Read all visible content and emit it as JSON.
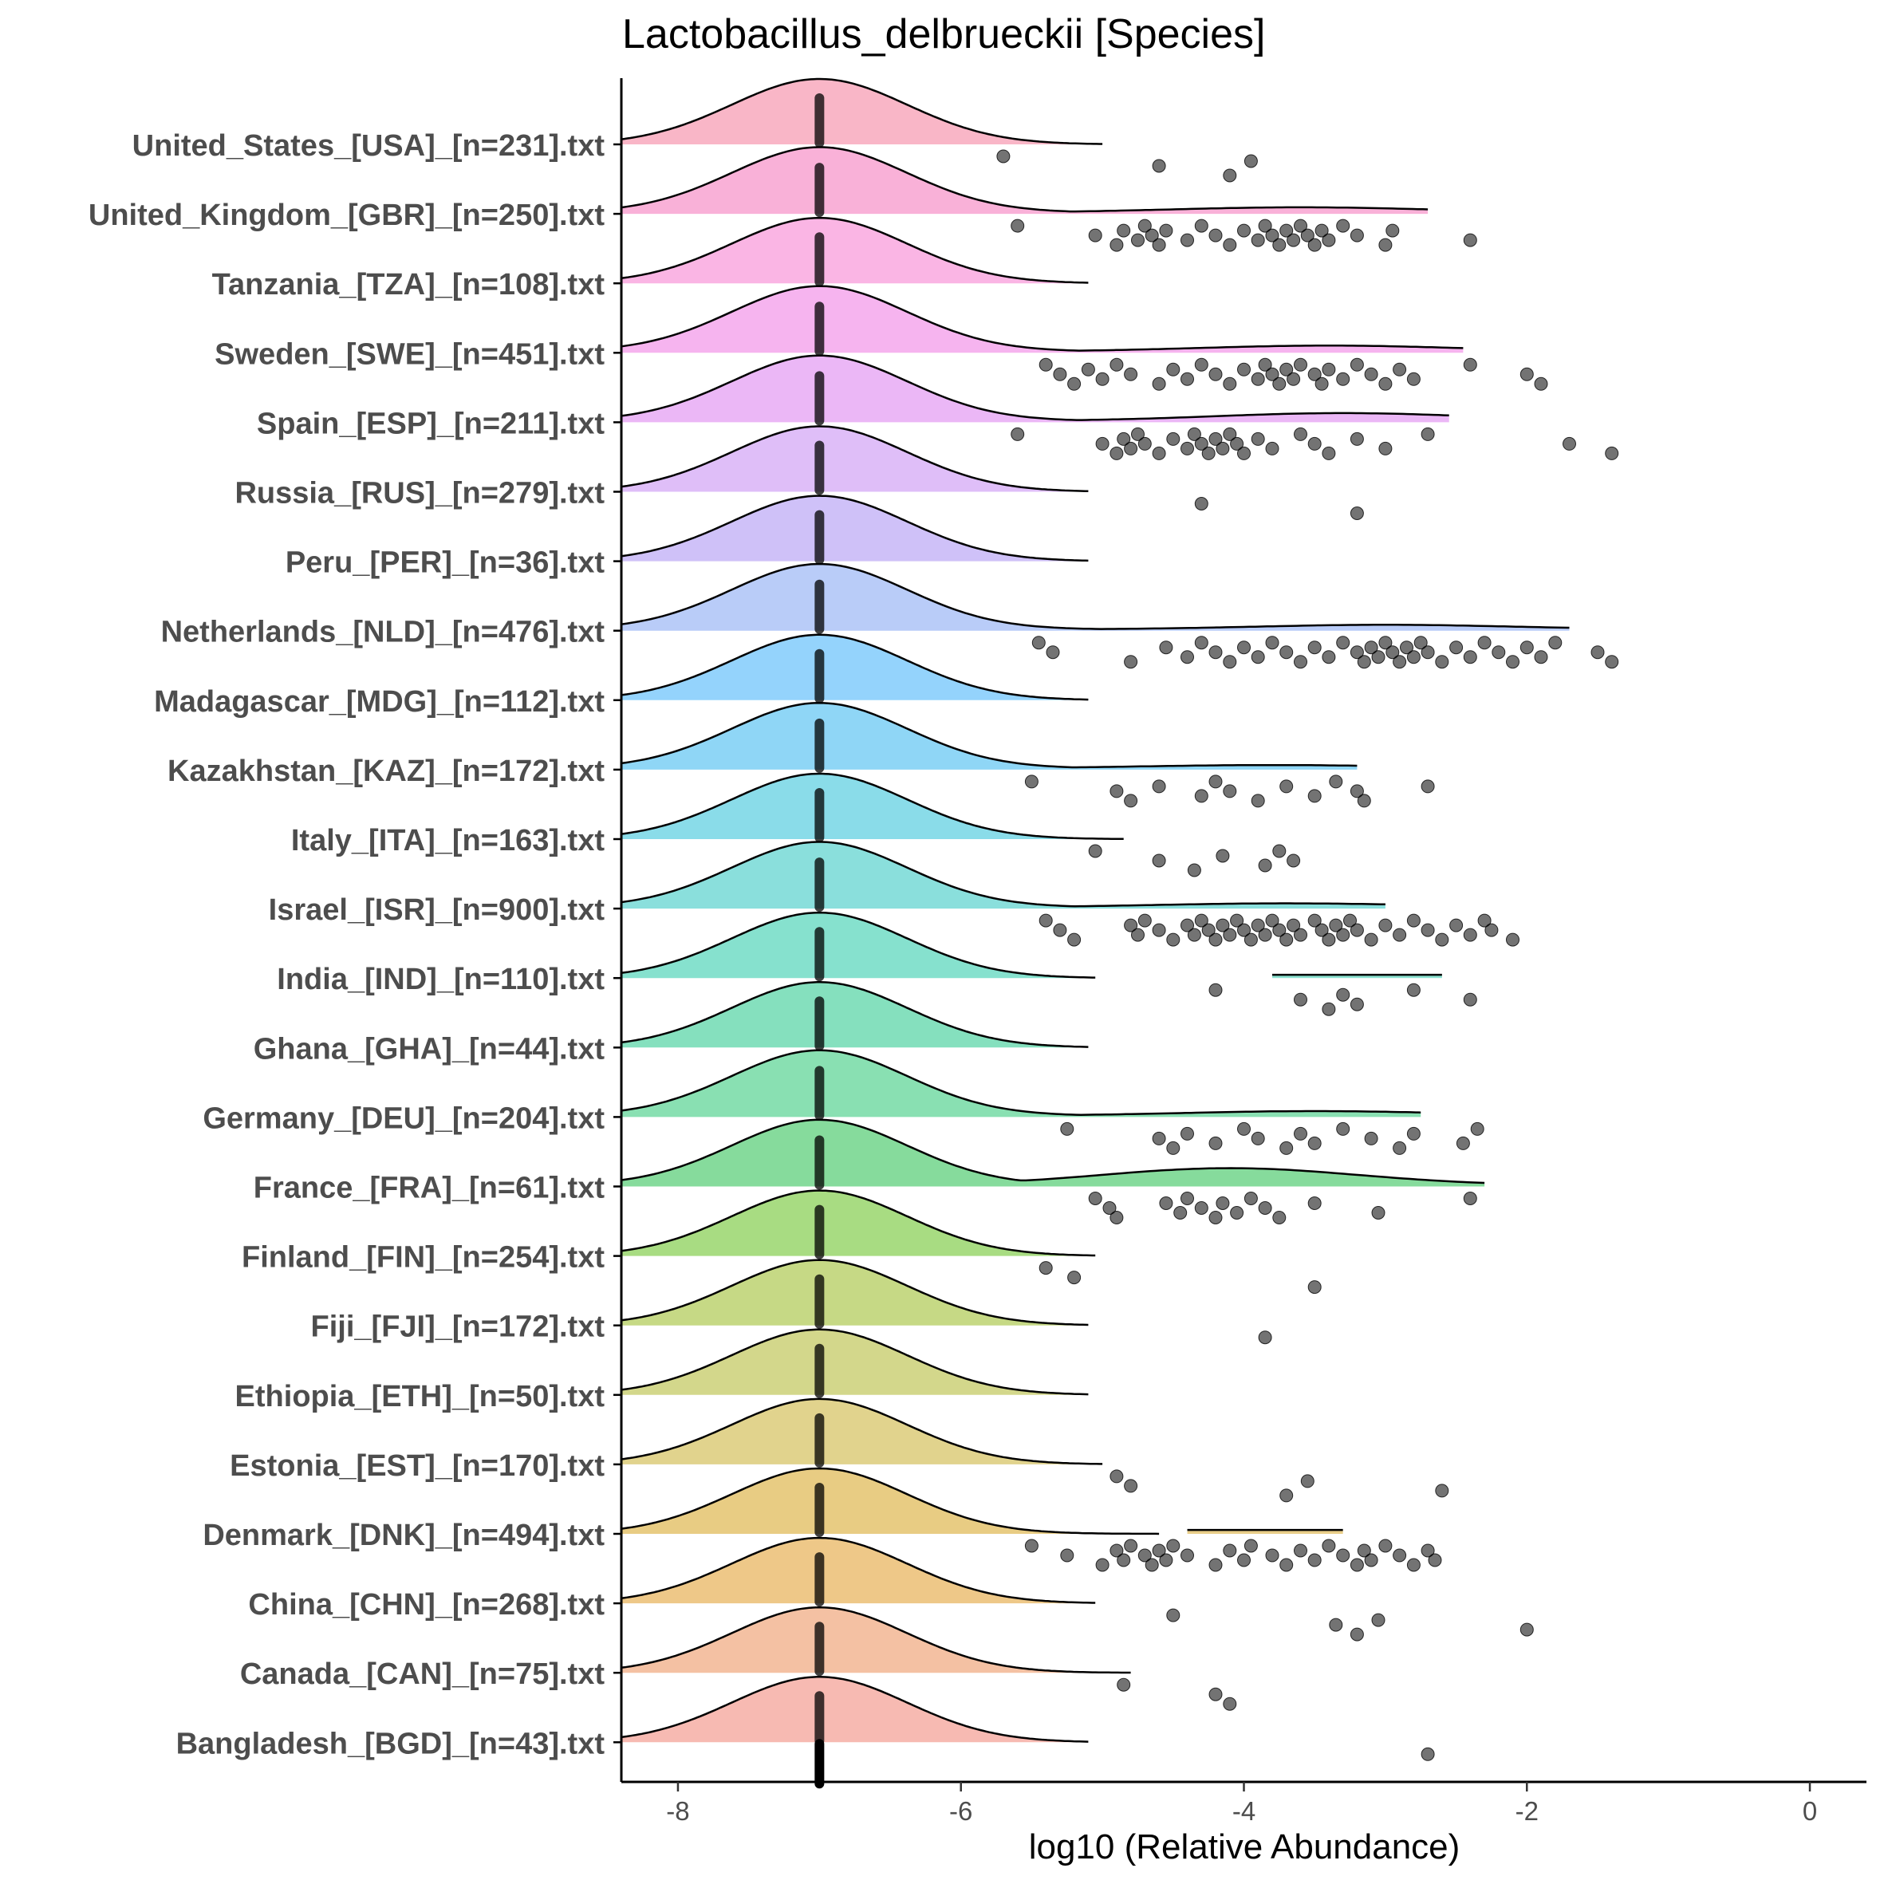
{
  "chart_data": {
    "type": "ridgeline",
    "title": "Lactobacillus_delbrueckii [Species]",
    "xlabel": "log10 (Relative Abundance)",
    "ylabel": "",
    "xlim": [
      -8.4,
      0.4
    ],
    "x_ticks": [
      -8,
      -6,
      -4,
      -2,
      0
    ],
    "x_tick_labels": [
      "-8",
      "-6",
      "-4",
      "-2",
      "0"
    ],
    "median_marker_x": -7.0,
    "categories": [
      {
        "label": "United_States_[USA]_[n=231].txt",
        "color": "#F9B2C4",
        "peak_x": -7.0,
        "tail_end": -5.0,
        "tail_x": null,
        "tail_end2": null,
        "tail_height": 0.0,
        "points": [
          -5.7,
          -4.6,
          -4.1,
          -3.95
        ]
      },
      {
        "label": "United_Kingdom_[GBR]_[n=250].txt",
        "color": "#F9ADD6",
        "peak_x": -7.0,
        "tail_end": -2.7,
        "tail_x": -3.6,
        "tail_end2": null,
        "tail_height": 0.08,
        "points": [
          -5.6,
          -5.05,
          -4.9,
          -4.85,
          -4.75,
          -4.7,
          -4.65,
          -4.6,
          -4.55,
          -4.4,
          -4.3,
          -4.2,
          -4.1,
          -4.0,
          -3.9,
          -3.85,
          -3.8,
          -3.75,
          -3.7,
          -3.65,
          -3.6,
          -3.55,
          -3.5,
          -3.45,
          -3.4,
          -3.3,
          -3.2,
          -3.0,
          -2.95,
          -2.4
        ]
      },
      {
        "label": "Tanzania_[TZA]_[n=108].txt",
        "color": "#FAB1E3",
        "peak_x": -7.0,
        "tail_end": -5.1,
        "tail_x": null,
        "tail_end2": null,
        "tail_height": 0.0,
        "points": []
      },
      {
        "label": "Sweden_[SWE]_[n=451].txt",
        "color": "#F6B0EE",
        "peak_x": -7.0,
        "tail_end": -2.45,
        "tail_x": -3.4,
        "tail_end2": null,
        "tail_height": 0.09,
        "points": [
          -5.4,
          -5.3,
          -5.2,
          -5.1,
          -5.0,
          -4.9,
          -4.8,
          -4.6,
          -4.5,
          -4.4,
          -4.3,
          -4.2,
          -4.1,
          -4.0,
          -3.9,
          -3.85,
          -3.8,
          -3.75,
          -3.7,
          -3.65,
          -3.6,
          -3.5,
          -3.45,
          -3.4,
          -3.3,
          -3.2,
          -3.1,
          -3.0,
          -2.9,
          -2.8,
          -2.4,
          -2.0,
          -1.9
        ]
      },
      {
        "label": "Spain_[ESP]_[n=211].txt",
        "color": "#EAB3F5",
        "peak_x": -7.0,
        "tail_end": -2.55,
        "tail_x": -3.3,
        "tail_end2": null,
        "tail_height": 0.12,
        "points": [
          -5.6,
          -5.0,
          -4.9,
          -4.85,
          -4.8,
          -4.75,
          -4.7,
          -4.6,
          -4.5,
          -4.4,
          -4.35,
          -4.3,
          -4.25,
          -4.2,
          -4.15,
          -4.1,
          -4.05,
          -4.0,
          -3.9,
          -3.8,
          -3.6,
          -3.5,
          -3.4,
          -3.2,
          -3.0,
          -2.7,
          -1.7,
          -1.4
        ]
      },
      {
        "label": "Russia_[RUS]_[n=279].txt",
        "color": "#DDBAF8",
        "peak_x": -7.0,
        "tail_end": -5.1,
        "tail_x": null,
        "tail_end2": null,
        "tail_height": 0.0,
        "points": [
          -4.3,
          -3.2
        ]
      },
      {
        "label": "Peru_[PER]_[n=36].txt",
        "color": "#CCBEF8",
        "peak_x": -7.0,
        "tail_end": -5.1,
        "tail_x": null,
        "tail_end2": null,
        "tail_height": 0.0,
        "points": []
      },
      {
        "label": "Netherlands_[NLD]_[n=476].txt",
        "color": "#B5C9F8",
        "peak_x": -7.0,
        "tail_end": -1.7,
        "tail_x": -3.0,
        "tail_end2": null,
        "tail_height": 0.07,
        "points": [
          -5.45,
          -5.35,
          -4.8,
          -4.55,
          -4.4,
          -4.3,
          -4.2,
          -4.1,
          -4.0,
          -3.9,
          -3.8,
          -3.7,
          -3.6,
          -3.5,
          -3.4,
          -3.3,
          -3.2,
          -3.15,
          -3.1,
          -3.05,
          -3.0,
          -2.95,
          -2.9,
          -2.85,
          -2.8,
          -2.75,
          -2.7,
          -2.6,
          -2.5,
          -2.4,
          -2.3,
          -2.2,
          -2.1,
          -2.0,
          -1.9,
          -1.8,
          -1.5,
          -1.4
        ]
      },
      {
        "label": "Madagascar_[MDG]_[n=112].txt",
        "color": "#8ED1FC",
        "peak_x": -7.0,
        "tail_end": -5.1,
        "tail_x": null,
        "tail_end2": null,
        "tail_height": 0.0,
        "points": []
      },
      {
        "label": "Kazakhstan_[KAZ]_[n=172].txt",
        "color": "#89D4F5",
        "peak_x": -7.0,
        "tail_end": -3.2,
        "tail_x": -3.8,
        "tail_end2": null,
        "tail_height": 0.05,
        "points": [
          -5.5,
          -4.9,
          -4.8,
          -4.6,
          -4.3,
          -4.2,
          -4.1,
          -3.9,
          -3.7,
          -3.5,
          -3.35,
          -3.2,
          -3.15,
          -2.7
        ]
      },
      {
        "label": "Italy_[ITA]_[n=163].txt",
        "color": "#84DAE8",
        "peak_x": -7.0,
        "tail_end": -4.85,
        "tail_x": null,
        "tail_end2": null,
        "tail_height": 0.0,
        "points": [
          -5.05,
          -4.6,
          -4.35,
          -4.15,
          -3.85,
          -3.75,
          -3.65
        ]
      },
      {
        "label": "Israel_[ISR]_[n=900].txt",
        "color": "#84DDDA",
        "peak_x": -7.0,
        "tail_end": -3.0,
        "tail_x": -3.7,
        "tail_end2": null,
        "tail_height": 0.06,
        "points": [
          -5.4,
          -5.3,
          -5.2,
          -4.8,
          -4.75,
          -4.7,
          -4.6,
          -4.5,
          -4.4,
          -4.35,
          -4.3,
          -4.25,
          -4.2,
          -4.15,
          -4.1,
          -4.05,
          -4.0,
          -3.95,
          -3.9,
          -3.85,
          -3.8,
          -3.75,
          -3.7,
          -3.65,
          -3.6,
          -3.5,
          -3.45,
          -3.4,
          -3.35,
          -3.3,
          -3.25,
          -3.2,
          -3.1,
          -3.0,
          -2.9,
          -2.8,
          -2.7,
          -2.6,
          -2.5,
          -2.4,
          -2.3,
          -2.25,
          -2.1
        ]
      },
      {
        "label": "India_[IND]_[n=110].txt",
        "color": "#80DFCB",
        "peak_x": -7.0,
        "tail_end": -5.05,
        "tail_x": null,
        "tail_end2": [
          -3.8,
          -2.6
        ],
        "tail_height": 0.05,
        "points": [
          -4.2,
          -3.6,
          -3.4,
          -3.3,
          -3.2,
          -2.8,
          -2.4
        ]
      },
      {
        "label": "Ghana_[GHA]_[n=44].txt",
        "color": "#7EDEBB",
        "peak_x": -7.0,
        "tail_end": -5.1,
        "tail_x": null,
        "tail_end2": null,
        "tail_height": 0.0,
        "points": []
      },
      {
        "label": "Germany_[DEU]_[n=204].txt",
        "color": "#83DEAE",
        "peak_x": -7.0,
        "tail_end": -2.75,
        "tail_x": -3.5,
        "tail_end2": null,
        "tail_height": 0.07,
        "points": [
          -5.25,
          -4.6,
          -4.5,
          -4.4,
          -4.2,
          -4.0,
          -3.9,
          -3.7,
          -3.6,
          -3.5,
          -3.3,
          -3.1,
          -2.9,
          -2.8,
          -2.45,
          -2.35
        ]
      },
      {
        "label": "France_[FRA]_[n=61].txt",
        "color": "#7FD997",
        "peak_x": -7.0,
        "tail_end": -2.3,
        "tail_x": -4.1,
        "tail_end2": null,
        "tail_height": 0.26,
        "points": [
          -5.05,
          -4.95,
          -4.9,
          -4.55,
          -4.45,
          -4.4,
          -4.3,
          -4.2,
          -4.15,
          -4.05,
          -3.95,
          -3.85,
          -3.75,
          -3.5,
          -3.05,
          -2.4
        ]
      },
      {
        "label": "Finland_[FIN]_[n=254].txt",
        "color": "#A3DA7B",
        "peak_x": -7.0,
        "tail_end": -5.05,
        "tail_x": null,
        "tail_end2": null,
        "tail_height": 0.0,
        "points": [
          -5.4,
          -5.2,
          -3.5
        ]
      },
      {
        "label": "Fiji_[FJI]_[n=172].txt",
        "color": "#C3D77E",
        "peak_x": -7.0,
        "tail_end": -5.1,
        "tail_x": null,
        "tail_end2": null,
        "tail_height": 0.0,
        "points": [
          -3.85
        ]
      },
      {
        "label": "Ethiopia_[ETH]_[n=50].txt",
        "color": "#D1D585",
        "peak_x": -7.0,
        "tail_end": -5.1,
        "tail_x": null,
        "tail_end2": null,
        "tail_height": 0.0,
        "points": []
      },
      {
        "label": "Estonia_[EST]_[n=170].txt",
        "color": "#DFD187",
        "peak_x": -7.0,
        "tail_end": -5.0,
        "tail_x": null,
        "tail_end2": null,
        "tail_height": 0.0,
        "points": [
          -4.9,
          -4.8,
          -3.7,
          -3.55,
          -2.6
        ]
      },
      {
        "label": "Denmark_[DNK]_[n=494].txt",
        "color": "#E7C97C",
        "peak_x": -7.0,
        "tail_end": -4.6,
        "tail_x": null,
        "tail_end2": [
          -4.4,
          -3.3
        ],
        "tail_height": 0.06,
        "points": [
          -5.5,
          -5.25,
          -5.0,
          -4.9,
          -4.85,
          -4.8,
          -4.7,
          -4.65,
          -4.6,
          -4.55,
          -4.5,
          -4.4,
          -4.2,
          -4.1,
          -4.0,
          -3.95,
          -3.8,
          -3.7,
          -3.6,
          -3.5,
          -3.4,
          -3.3,
          -3.2,
          -3.15,
          -3.1,
          -3.0,
          -2.9,
          -2.8,
          -2.7,
          -2.65
        ]
      },
      {
        "label": "China_[CHN]_[n=268].txt",
        "color": "#EDC582",
        "peak_x": -7.0,
        "tail_end": -5.05,
        "tail_x": null,
        "tail_end2": null,
        "tail_height": 0.0,
        "points": [
          -4.5,
          -3.35,
          -3.2,
          -3.05,
          -2.0
        ]
      },
      {
        "label": "Canada_[CAN]_[n=75].txt",
        "color": "#F3BE9E",
        "peak_x": -7.0,
        "tail_end": -4.8,
        "tail_x": null,
        "tail_end2": null,
        "tail_height": 0.0,
        "points": [
          -4.85,
          -4.2,
          -4.1
        ]
      },
      {
        "label": "Bangladesh_[BGD]_[n=43].txt",
        "color": "#F7B6AE",
        "peak_x": -7.0,
        "tail_end": -5.1,
        "tail_x": null,
        "tail_end2": null,
        "tail_height": 0.0,
        "points": [
          -2.7
        ]
      }
    ]
  }
}
